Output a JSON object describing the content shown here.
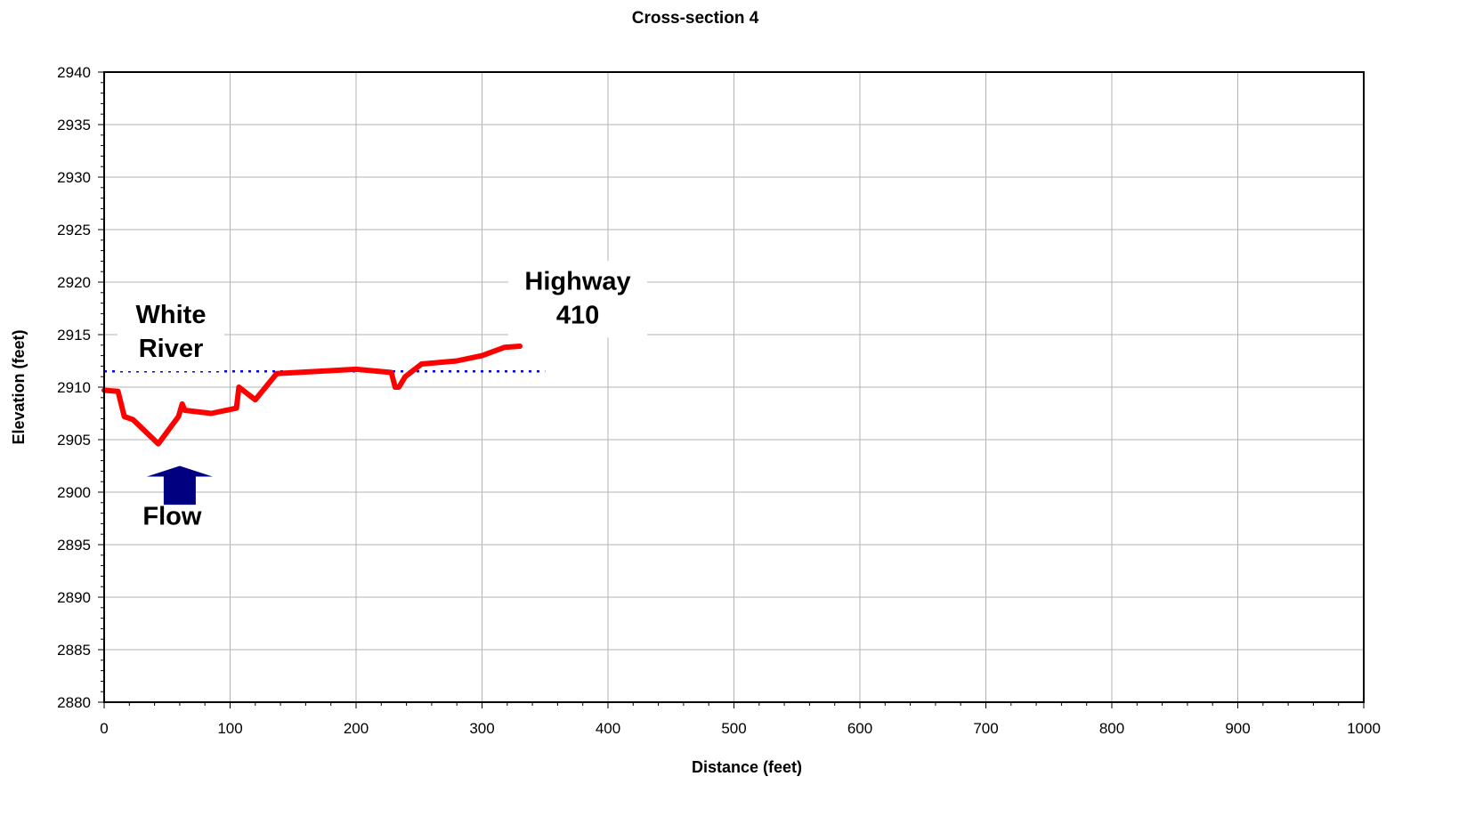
{
  "chart_data": {
    "type": "line",
    "title": "Cross-section 4",
    "xlabel": "Distance (feet)",
    "ylabel": "Elevation (feet)",
    "xlim": [
      0,
      1000
    ],
    "ylim": [
      2880,
      2940
    ],
    "xticks": [
      0,
      100,
      200,
      300,
      400,
      500,
      600,
      700,
      800,
      900,
      1000
    ],
    "yticks": [
      2880,
      2885,
      2890,
      2895,
      2900,
      2905,
      2910,
      2915,
      2920,
      2925,
      2930,
      2935,
      2940
    ],
    "grid": true,
    "series": [
      {
        "color": "#ff0000",
        "style": "solid",
        "x": [
          0,
          11,
          16,
          23,
          43,
          59,
          62,
          64,
          85,
          105,
          107,
          120,
          137,
          200,
          228,
          231,
          234,
          239,
          252,
          280,
          300,
          318,
          330
        ],
        "y": [
          2909.7,
          2909.6,
          2907.2,
          2906.9,
          2904.6,
          2907.2,
          2908.4,
          2907.8,
          2907.5,
          2908.0,
          2910.0,
          2908.8,
          2911.3,
          2911.7,
          2911.4,
          2910.0,
          2910.0,
          2911.0,
          2912.2,
          2912.5,
          2913.0,
          2913.8,
          2913.9
        ]
      },
      {
        "color": "#0000ff",
        "style": "dotted",
        "x": [
          0,
          350
        ],
        "y": [
          2911.5,
          2911.5
        ]
      }
    ],
    "annotations": [
      {
        "lines": [
          "White",
          "River"
        ],
        "x": 53,
        "y": 2916.1
      },
      {
        "lines": [
          "Highway",
          "410"
        ],
        "x": 376,
        "y": 2919.3
      },
      {
        "lines": [
          "Flow"
        ],
        "x": 54,
        "y": 2896.9
      }
    ],
    "flow_arrow": {
      "x": 60,
      "y_tip": 2902.5,
      "y_base": 2898.8,
      "color": "#000080"
    }
  }
}
